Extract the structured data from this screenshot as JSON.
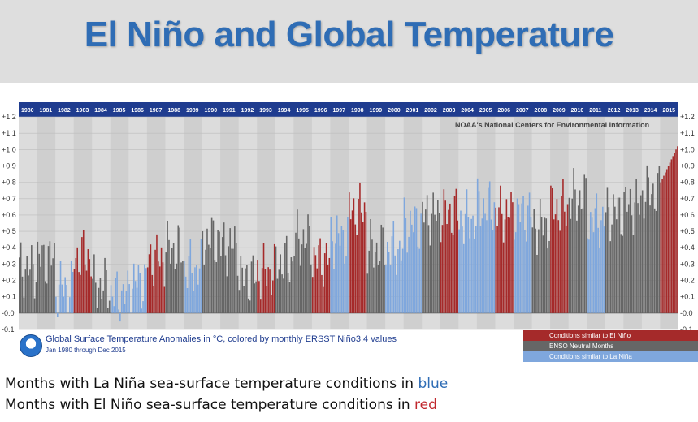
{
  "header": {
    "title": "El Niño and Global Temperature"
  },
  "figure": {
    "source": "NOAA's National Centers for Environmental Information",
    "caption_main": "Global Surface Temperature Anomalies in °C, colored by monthly ERSST Niño3.4 values",
    "caption_sub": "Jan 1980 through Dec 2015",
    "legend": [
      {
        "label": "Conditions similar to El Niño",
        "color": "#a52a2a"
      },
      {
        "label": "ENSO Neutral Months",
        "color": "#666666"
      },
      {
        "label": "Conditions similar to La Niña",
        "color": "#7fa7dd"
      }
    ]
  },
  "bottom": {
    "line1_prefix": "Months with La Niña sea-surface temperature conditions in ",
    "line1_word": "blue",
    "line2_prefix": "Months with El Niño sea-surface temperature conditions in ",
    "line2_word": "red"
  },
  "chart_data": {
    "type": "bar",
    "title": "",
    "xlabel": "",
    "ylabel": "",
    "ylim": [
      -0.1,
      1.2
    ],
    "yticks": [
      "-0.1",
      "-0.0",
      "+0.1",
      "+0.2",
      "+0.3",
      "+0.4",
      "+0.5",
      "+0.6",
      "+0.7",
      "+0.8",
      "+0.9",
      "+1.0",
      "+1.1",
      "+1.2"
    ],
    "ytick_values": [
      -0.1,
      0.0,
      0.1,
      0.2,
      0.3,
      0.4,
      0.5,
      0.6,
      0.7,
      0.8,
      0.9,
      1.0,
      1.1,
      1.2
    ],
    "categories": [
      "1980",
      "1981",
      "1982",
      "1983",
      "1984",
      "1985",
      "1986",
      "1987",
      "1988",
      "1989",
      "1990",
      "1991",
      "1992",
      "1993",
      "1994",
      "1995",
      "1996",
      "1997",
      "1998",
      "1999",
      "2000",
      "2001",
      "2002",
      "2003",
      "2004",
      "2005",
      "2006",
      "2007",
      "2008",
      "2009",
      "2010",
      "2011",
      "2012",
      "2013",
      "2014",
      "2015"
    ],
    "annual_mean": [
      0.27,
      0.33,
      0.16,
      0.35,
      0.17,
      0.11,
      0.19,
      0.33,
      0.39,
      0.27,
      0.45,
      0.41,
      0.22,
      0.25,
      0.31,
      0.45,
      0.33,
      0.46,
      0.63,
      0.39,
      0.39,
      0.54,
      0.6,
      0.61,
      0.57,
      0.65,
      0.61,
      0.61,
      0.54,
      0.64,
      0.7,
      0.57,
      0.62,
      0.66,
      0.74,
      0.9
    ],
    "month_color": [
      "N",
      "N",
      "L",
      "E",
      "N",
      "L",
      "L",
      "E",
      "N",
      "L",
      "N",
      "N",
      "N",
      "E",
      "N",
      "N",
      "E",
      "L",
      "E",
      "N",
      "L",
      "L",
      "N",
      "E",
      "L",
      "L",
      "E",
      "L",
      "N",
      "E",
      "N",
      "L",
      "N",
      "N",
      "N",
      "E"
    ],
    "color_key": {
      "E": "El Niño",
      "N": "ENSO Neutral",
      "L": "La Niña"
    },
    "legend_placement": "bottom-right",
    "grid": true
  }
}
